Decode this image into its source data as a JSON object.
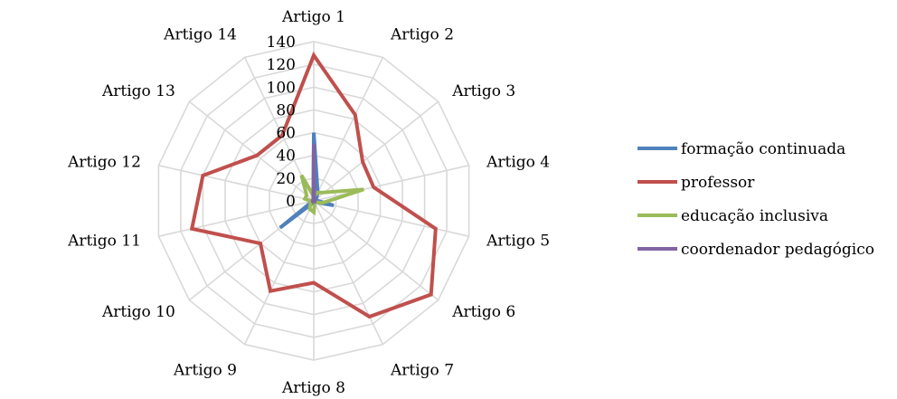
{
  "chart_data": {
    "type": "radar",
    "categories": [
      "Artigo 1",
      "Artigo 2",
      "Artigo 3",
      "Artigo 4",
      "Artigo 5",
      "Artigo 6",
      "Artigo 7",
      "Artigo 8",
      "Artigo 9",
      "Artigo 10",
      "Artigo 11",
      "Artigo 12",
      "Artigo 13",
      "Artigo 14"
    ],
    "rlim": [
      0,
      140
    ],
    "ticks": [
      "0",
      "20",
      "40",
      "60",
      "80",
      "100",
      "120",
      "140"
    ],
    "tick_values": [
      0,
      20,
      40,
      60,
      80,
      100,
      120,
      140
    ],
    "grid": true,
    "legend_position": "right",
    "series": [
      {
        "name": "formação continuada",
        "color": "#4f81bd",
        "values": [
          60,
          8,
          3,
          2,
          18,
          2,
          1,
          1,
          2,
          38,
          1,
          1,
          1,
          1
        ]
      },
      {
        "name": "professor",
        "color": "#c0504d",
        "values": [
          128,
          84,
          55,
          54,
          110,
          132,
          113,
          72,
          88,
          60,
          110,
          100,
          64,
          64
        ]
      },
      {
        "name": "educação inclusiva",
        "color": "#9bbb59",
        "values": [
          4,
          8,
          12,
          45,
          8,
          2,
          2,
          10,
          8,
          4,
          2,
          8,
          8,
          25
        ]
      },
      {
        "name": "coordenador pedagógico",
        "color": "#8064a2",
        "values": [
          50,
          1,
          1,
          1,
          1,
          1,
          1,
          1,
          1,
          1,
          1,
          1,
          1,
          1
        ]
      }
    ]
  }
}
